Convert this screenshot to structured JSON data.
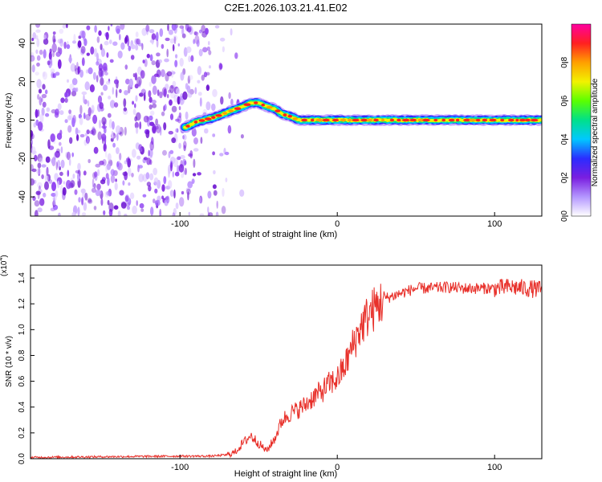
{
  "figure_title": "C2E1.2026.103.21.41.E02",
  "chart_data": [
    {
      "type": "heatmap",
      "title": "C2E1.2026.103.21.41.E02",
      "xlabel": "Height of straight line (km)",
      "ylabel": "Frequency (Hz)",
      "xlim": [
        -195,
        130
      ],
      "ylim": [
        -50,
        50
      ],
      "xticks": [
        {
          "value": -100,
          "label": "-100"
        },
        {
          "value": 0,
          "label": "0"
        },
        {
          "value": 100,
          "label": "100"
        }
      ],
      "yticks": [
        {
          "value": -40,
          "label": "-40"
        },
        {
          "value": -20,
          "label": "-20"
        },
        {
          "value": 0,
          "label": "0"
        },
        {
          "value": 20,
          "label": "20"
        },
        {
          "value": 40,
          "label": "40"
        }
      ],
      "noise_region_x": [
        -195,
        -75
      ],
      "trace": {
        "x": [
          -97,
          -90,
          -80,
          -70,
          -60,
          -55,
          -50,
          -45,
          -40,
          -35,
          -30,
          -25,
          -20,
          0,
          20,
          50,
          80,
          110,
          130
        ],
        "y": [
          -4,
          -1,
          1,
          4,
          7,
          9,
          9,
          7,
          6,
          3,
          2,
          0,
          0,
          0,
          0,
          0,
          0,
          0,
          0
        ]
      },
      "colorbar": {
        "label": "Normalized spectral amplitude",
        "range": [
          0,
          1
        ],
        "ticks": [
          {
            "value": 0.0,
            "label": "0.0"
          },
          {
            "value": 0.2,
            "label": "0.2"
          },
          {
            "value": 0.4,
            "label": "0.4"
          },
          {
            "value": 0.6,
            "label": "0.6"
          },
          {
            "value": 0.8,
            "label": "0.8"
          }
        ],
        "colors": [
          "#ffffff",
          "#b497ff",
          "#7a1ee0",
          "#2b2cff",
          "#00c8ff",
          "#00e08a",
          "#5aff00",
          "#f2f200",
          "#ffa000",
          "#ff2020",
          "#ff00a0"
        ]
      }
    },
    {
      "type": "line",
      "xlabel": "Height of straight line (km)",
      "ylabel": "SNR (10 * v/v)",
      "y_multiplier": "(x10",
      "y_multiplier_exp": "4",
      "xlim": [
        -195,
        130
      ],
      "ylim": [
        0,
        1.5
      ],
      "xticks": [
        {
          "value": -100,
          "label": "-100"
        },
        {
          "value": 0,
          "label": "0"
        },
        {
          "value": 100,
          "label": "100"
        }
      ],
      "yticks": [
        {
          "value": 0.0,
          "label": "0.0"
        },
        {
          "value": 0.2,
          "label": "0.2"
        },
        {
          "value": 0.4,
          "label": "0.4"
        },
        {
          "value": 0.6,
          "label": "0.6"
        },
        {
          "value": 0.8,
          "label": "0.8"
        },
        {
          "value": 1.0,
          "label": "1.0"
        },
        {
          "value": 1.2,
          "label": "1.2"
        },
        {
          "value": 1.4,
          "label": "1.4"
        }
      ],
      "series": [
        {
          "name": "SNR",
          "color": "#e8302a",
          "x": [
            -195,
            -150,
            -100,
            -80,
            -70,
            -65,
            -60,
            -55,
            -50,
            -45,
            -40,
            -35,
            -30,
            -25,
            -20,
            -15,
            -10,
            -5,
            0,
            5,
            10,
            15,
            20,
            25,
            30,
            40,
            50,
            60,
            70,
            80,
            90,
            100,
            110,
            120,
            130
          ],
          "y": [
            0.01,
            0.015,
            0.02,
            0.02,
            0.03,
            0.05,
            0.12,
            0.18,
            0.12,
            0.06,
            0.15,
            0.3,
            0.35,
            0.38,
            0.42,
            0.48,
            0.52,
            0.58,
            0.62,
            0.72,
            0.88,
            1.02,
            1.12,
            1.18,
            1.24,
            1.28,
            1.32,
            1.32,
            1.33,
            1.32,
            1.32,
            1.32,
            1.33,
            1.32,
            1.31
          ]
        }
      ]
    }
  ]
}
